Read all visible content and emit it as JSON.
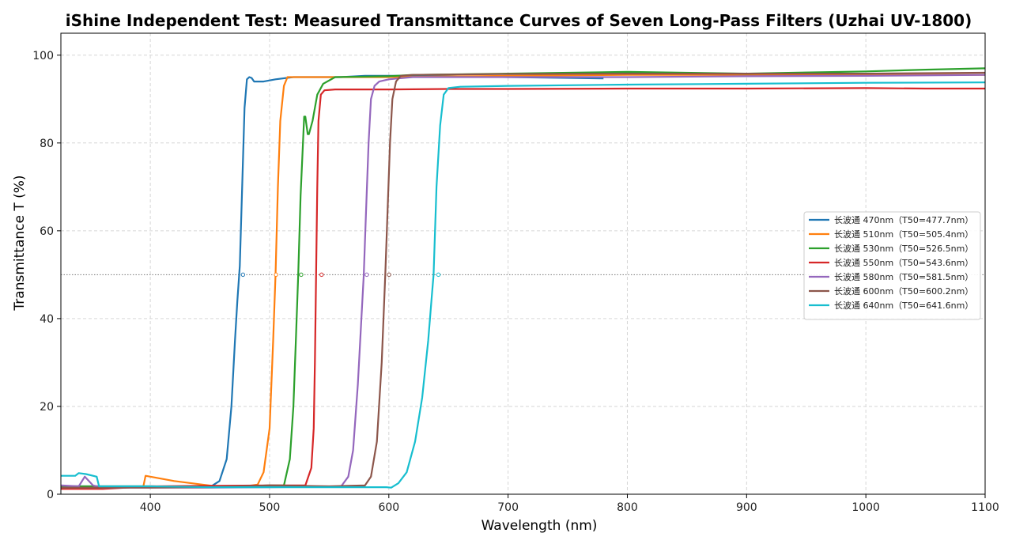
{
  "chart_data": {
    "type": "line",
    "title": "iShine Independent Test: Measured Transmittance Curves of Seven Long-Pass Filters (Uzhai UV-1800)",
    "xlabel": "Wavelength (nm)",
    "ylabel": "Transmittance T (%)",
    "xlim": [
      325,
      1100
    ],
    "ylim": [
      0,
      105
    ],
    "xticks": [
      400,
      500,
      600,
      700,
      800,
      900,
      1000,
      1100
    ],
    "yticks": [
      0,
      20,
      40,
      60,
      80,
      100
    ],
    "grid": true,
    "legend_position": "center-right",
    "reference_line": {
      "y": 50,
      "style": "dotted"
    },
    "series": [
      {
        "name": "长波通 470nm（T50=477.7nm）",
        "color": "#1f77b4",
        "t50": 477.7,
        "points": [
          [
            325,
            1.8
          ],
          [
            400,
            1.8
          ],
          [
            450,
            1.6
          ],
          [
            458,
            3
          ],
          [
            464,
            8
          ],
          [
            468,
            20
          ],
          [
            471,
            35
          ],
          [
            473,
            44
          ],
          [
            475,
            52
          ],
          [
            477,
            70
          ],
          [
            479,
            88
          ],
          [
            481,
            94.5
          ],
          [
            483,
            95
          ],
          [
            485,
            94.8
          ],
          [
            487,
            94
          ],
          [
            495,
            94
          ],
          [
            505,
            94.5
          ],
          [
            520,
            95
          ],
          [
            540,
            95
          ],
          [
            560,
            95
          ],
          [
            580,
            95.3
          ],
          [
            620,
            95.3
          ],
          [
            700,
            95
          ],
          [
            780,
            94.7
          ]
        ]
      },
      {
        "name": "长波通 510nm（T50=505.4nm）",
        "color": "#ff7f0e",
        "t50": 505.4,
        "points": [
          [
            325,
            1.5
          ],
          [
            394,
            1.6
          ],
          [
            396,
            4.2
          ],
          [
            420,
            3
          ],
          [
            455,
            1.8
          ],
          [
            480,
            1.8
          ],
          [
            490,
            2.2
          ],
          [
            495,
            5
          ],
          [
            500,
            15
          ],
          [
            503,
            35
          ],
          [
            505,
            50
          ],
          [
            507,
            70
          ],
          [
            509,
            85
          ],
          [
            512,
            93
          ],
          [
            515,
            95
          ],
          [
            530,
            95
          ],
          [
            560,
            95
          ],
          [
            600,
            95
          ],
          [
            700,
            95.3
          ],
          [
            800,
            95.5
          ],
          [
            900,
            95.5
          ],
          [
            1000,
            95.5
          ],
          [
            1100,
            95.5
          ]
        ]
      },
      {
        "name": "长波通 530nm（T50=526.5nm）",
        "color": "#2ca02c",
        "t50": 526.5,
        "points": [
          [
            325,
            1.8
          ],
          [
            400,
            1.8
          ],
          [
            450,
            1.6
          ],
          [
            500,
            2
          ],
          [
            512,
            2
          ],
          [
            517,
            8
          ],
          [
            520,
            20
          ],
          [
            522,
            35
          ],
          [
            524,
            50
          ],
          [
            526,
            68
          ],
          [
            528,
            80
          ],
          [
            529,
            86
          ],
          [
            530,
            86
          ],
          [
            532,
            82
          ],
          [
            533,
            82
          ],
          [
            536,
            85
          ],
          [
            540,
            91
          ],
          [
            545,
            93.5
          ],
          [
            555,
            95
          ],
          [
            600,
            95.2
          ],
          [
            620,
            95.5
          ],
          [
            700,
            95.8
          ],
          [
            800,
            96.2
          ],
          [
            900,
            95.8
          ],
          [
            1000,
            96.3
          ],
          [
            1050,
            96.7
          ],
          [
            1100,
            97
          ]
        ]
      },
      {
        "name": "长波通 550nm（T50=543.6nm）",
        "color": "#d62728",
        "t50": 543.6,
        "points": [
          [
            325,
            1.2
          ],
          [
            360,
            1.2
          ],
          [
            400,
            1.8
          ],
          [
            500,
            2
          ],
          [
            530,
            2
          ],
          [
            535,
            6
          ],
          [
            537,
            15
          ],
          [
            538,
            30
          ],
          [
            539,
            50
          ],
          [
            540,
            70
          ],
          [
            541,
            85
          ],
          [
            543,
            91
          ],
          [
            546,
            92
          ],
          [
            555,
            92.2
          ],
          [
            600,
            92.2
          ],
          [
            650,
            92.3
          ],
          [
            700,
            92.3
          ],
          [
            800,
            92.4
          ],
          [
            900,
            92.4
          ],
          [
            1000,
            92.5
          ],
          [
            1050,
            92.4
          ],
          [
            1100,
            92.4
          ]
        ]
      },
      {
        "name": "长波通 580nm（T50=581.5nm）",
        "color": "#9467bd",
        "t50": 581.5,
        "points": [
          [
            325,
            2
          ],
          [
            340,
            1.8
          ],
          [
            345,
            4
          ],
          [
            352,
            2
          ],
          [
            360,
            1.5
          ],
          [
            400,
            1.5
          ],
          [
            450,
            1.5
          ],
          [
            500,
            1.6
          ],
          [
            560,
            1.8
          ],
          [
            566,
            4
          ],
          [
            570,
            10
          ],
          [
            574,
            25
          ],
          [
            577,
            40
          ],
          [
            579,
            50
          ],
          [
            581,
            65
          ],
          [
            583,
            80
          ],
          [
            585,
            90
          ],
          [
            588,
            93
          ],
          [
            592,
            94
          ],
          [
            600,
            94.5
          ],
          [
            620,
            95
          ],
          [
            700,
            95
          ],
          [
            800,
            95
          ],
          [
            900,
            95.2
          ],
          [
            1000,
            95.3
          ],
          [
            1100,
            95.5
          ]
        ]
      },
      {
        "name": "长波通 600nm（T50=600.2nm）",
        "color": "#8c564b",
        "t50": 600.2,
        "points": [
          [
            325,
            1.5
          ],
          [
            400,
            1.5
          ],
          [
            450,
            1.6
          ],
          [
            500,
            2
          ],
          [
            550,
            1.8
          ],
          [
            580,
            2
          ],
          [
            585,
            4
          ],
          [
            590,
            12
          ],
          [
            594,
            30
          ],
          [
            597,
            50
          ],
          [
            599,
            65
          ],
          [
            601,
            80
          ],
          [
            603,
            90
          ],
          [
            606,
            94
          ],
          [
            610,
            95.3
          ],
          [
            620,
            95.5
          ],
          [
            700,
            95.7
          ],
          [
            800,
            95.8
          ],
          [
            900,
            95.8
          ],
          [
            1000,
            95.8
          ],
          [
            1100,
            96
          ]
        ]
      },
      {
        "name": "长波通 640nm（T50=641.6nm）",
        "color": "#17becf",
        "t50": 641.6,
        "points": [
          [
            325,
            4.2
          ],
          [
            337,
            4.2
          ],
          [
            340,
            4.8
          ],
          [
            346,
            4.6
          ],
          [
            355,
            4
          ],
          [
            357,
            1.8
          ],
          [
            370,
            1.8
          ],
          [
            400,
            1.8
          ],
          [
            450,
            1.6
          ],
          [
            500,
            1.6
          ],
          [
            560,
            1.6
          ],
          [
            598,
            1.6
          ],
          [
            602,
            1.5
          ],
          [
            608,
            2.5
          ],
          [
            615,
            5
          ],
          [
            622,
            12
          ],
          [
            628,
            22
          ],
          [
            633,
            35
          ],
          [
            636,
            45
          ],
          [
            637.5,
            50
          ],
          [
            640,
            70
          ],
          [
            643,
            84
          ],
          [
            646,
            91
          ],
          [
            650,
            92.5
          ],
          [
            660,
            92.8
          ],
          [
            700,
            93
          ],
          [
            800,
            93.3
          ],
          [
            900,
            93.5
          ],
          [
            1000,
            93.7
          ],
          [
            1100,
            93.8
          ]
        ]
      }
    ]
  }
}
